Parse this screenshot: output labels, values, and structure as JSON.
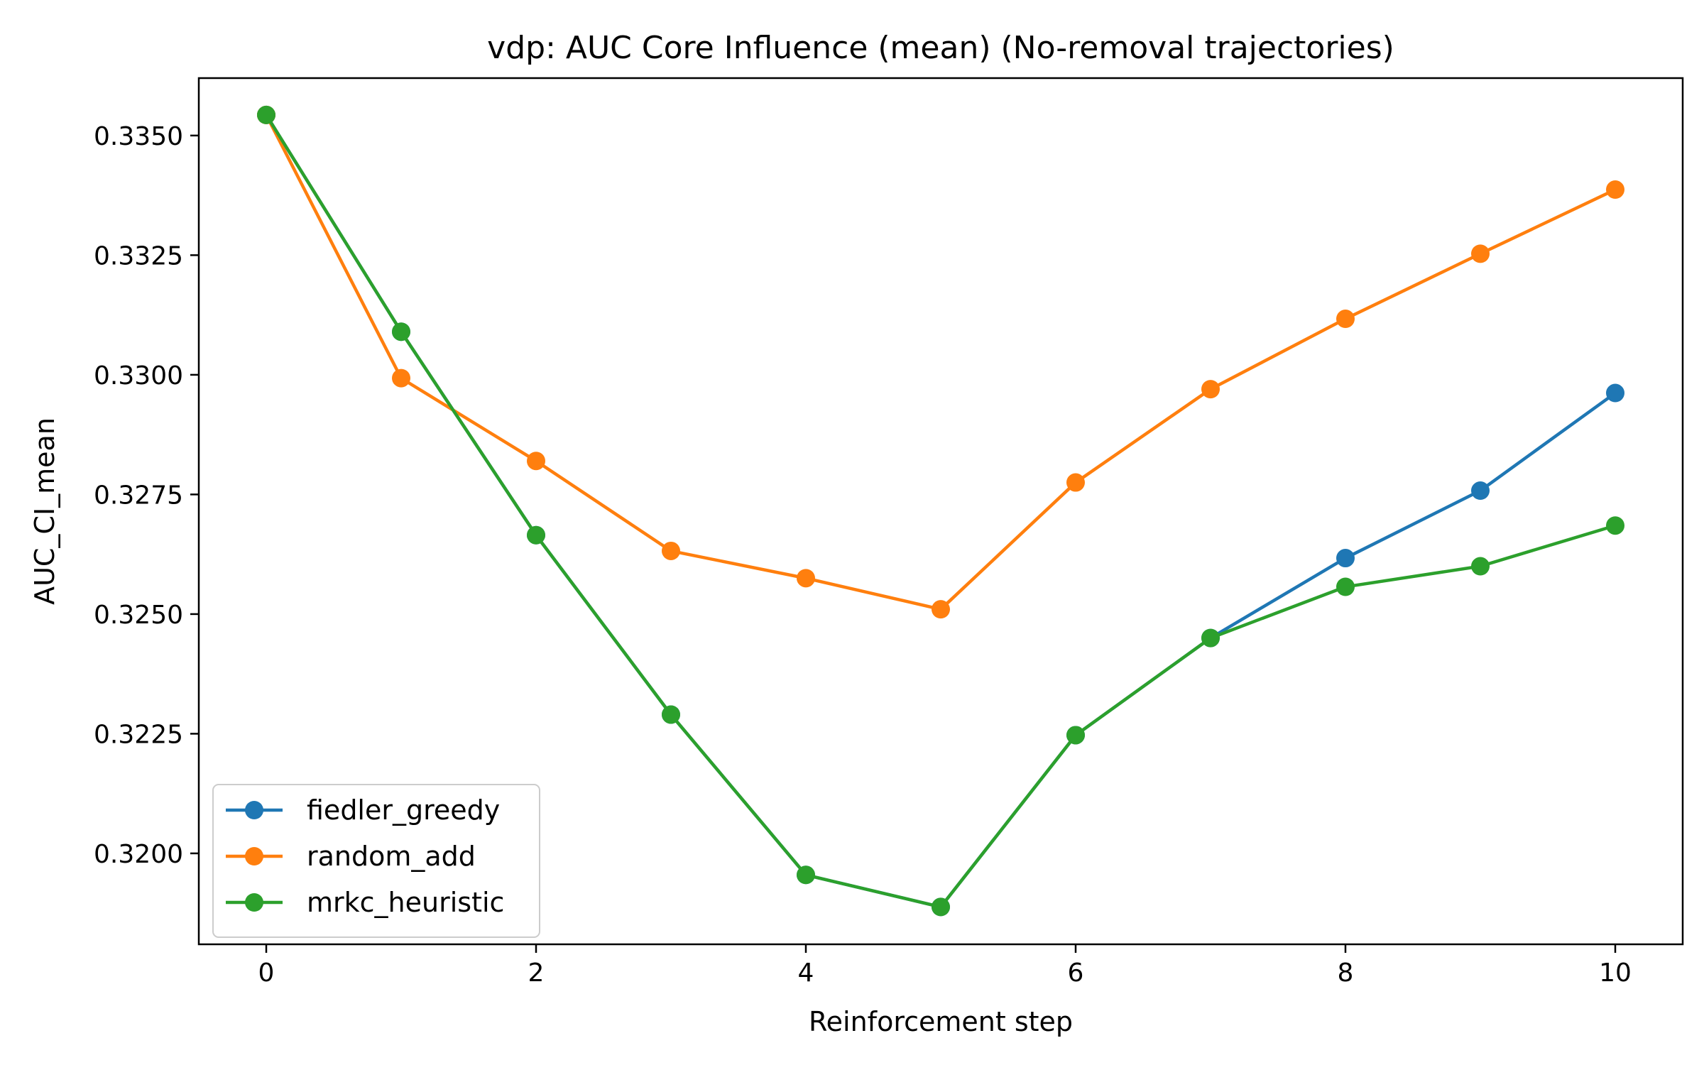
{
  "chart_data": {
    "type": "line",
    "title": "vdp: AUC Core Influence (mean) (No-removal trajectories)",
    "xlabel": "Reinforcement step",
    "ylabel": "AUC_CI_mean",
    "xlim": [
      -0.5,
      10.5
    ],
    "ylim": [
      0.3181,
      0.3362
    ],
    "xticks": [
      0,
      2,
      4,
      6,
      8,
      10
    ],
    "xtick_labels": [
      "0",
      "2",
      "4",
      "6",
      "8",
      "10"
    ],
    "yticks": [
      0.32,
      0.3225,
      0.325,
      0.3275,
      0.33,
      0.3325,
      0.335
    ],
    "ytick_labels": [
      "0.3200",
      "0.3225",
      "0.3250",
      "0.3275",
      "0.3300",
      "0.3325",
      "0.3350"
    ],
    "grid": false,
    "legend_position": "lower-left",
    "x": [
      0,
      1,
      2,
      3,
      4,
      5,
      6,
      7,
      8,
      9,
      10
    ],
    "series": [
      {
        "name": "fiedler_greedy",
        "color": "#1f77b4",
        "values": [
          0.33543,
          0.3309,
          0.32665,
          0.3229,
          0.31955,
          0.31888,
          0.32247,
          0.3245,
          0.32617,
          0.32758,
          0.32962
        ]
      },
      {
        "name": "random_add",
        "color": "#ff7f0e",
        "values": [
          0.33543,
          0.32993,
          0.3282,
          0.32632,
          0.32575,
          0.3251,
          0.32775,
          0.3297,
          0.33117,
          0.33253,
          0.33387
        ]
      },
      {
        "name": "mrkc_heuristic",
        "color": "#2ca02c",
        "values": [
          0.33543,
          0.3309,
          0.32665,
          0.3229,
          0.31955,
          0.31888,
          0.32247,
          0.3245,
          0.32557,
          0.326,
          0.32685
        ]
      }
    ]
  }
}
